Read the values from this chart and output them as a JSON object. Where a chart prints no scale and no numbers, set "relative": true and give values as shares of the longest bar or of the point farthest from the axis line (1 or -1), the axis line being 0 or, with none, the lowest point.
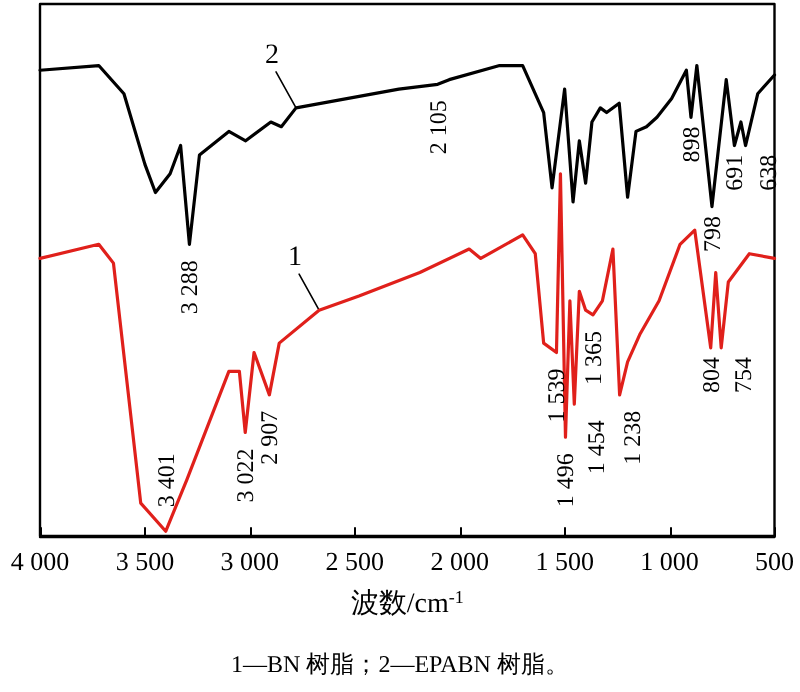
{
  "chart_data": {
    "type": "line",
    "relative": true,
    "xlabel": "波数/cm$^{-1}$",
    "xlim": [
      4000,
      500
    ],
    "xticks": [
      {
        "value": 4000,
        "label": "4 000"
      },
      {
        "value": 3500,
        "label": "3 500"
      },
      {
        "value": 3000,
        "label": "3 000"
      },
      {
        "value": 2500,
        "label": "2 500"
      },
      {
        "value": 2000,
        "label": "2 000"
      },
      {
        "value": 1500,
        "label": "1 500"
      },
      {
        "value": 1000,
        "label": "1 000"
      },
      {
        "value": 500,
        "label": "500"
      }
    ],
    "tick_labels": "x",
    "grid": false,
    "legend": false,
    "marker": "none",
    "line_style": "solid",
    "series": [
      {
        "name": "2",
        "color": "#000000",
        "x": [
          4000,
          3720,
          3600,
          3500,
          3450,
          3380,
          3330,
          3288,
          3240,
          3100,
          3020,
          2900,
          2850,
          2780,
          2290,
          2105,
          2050,
          1810,
          1700,
          1600,
          1560,
          1500,
          1460,
          1430,
          1400,
          1370,
          1330,
          1300,
          1240,
          1200,
          1160,
          1110,
          1060,
          990,
          920,
          898,
          870,
          798,
          730,
          691,
          660,
          638,
          580,
          500
        ],
        "values": [
          0.99,
          1.0,
          0.94,
          0.79,
          0.73,
          0.77,
          0.83,
          0.62,
          0.81,
          0.86,
          0.84,
          0.88,
          0.87,
          0.91,
          0.95,
          0.96,
          0.97,
          1.0,
          1.0,
          0.9,
          0.74,
          0.95,
          0.71,
          0.84,
          0.75,
          0.88,
          0.91,
          0.9,
          0.92,
          0.72,
          0.86,
          0.87,
          0.89,
          0.93,
          0.99,
          0.89,
          1.0,
          0.7,
          0.97,
          0.83,
          0.88,
          0.83,
          0.94,
          0.98
        ]
      },
      {
        "name": "1",
        "color": "#e0201b",
        "x": [
          4000,
          3720,
          3650,
          3520,
          3401,
          3300,
          3100,
          3050,
          3022,
          2980,
          2907,
          2860,
          2670,
          2480,
          2190,
          1955,
          1900,
          1700,
          1640,
          1600,
          1539,
          1520,
          1496,
          1475,
          1454,
          1430,
          1400,
          1365,
          1320,
          1270,
          1238,
          1200,
          1140,
          1050,
          950,
          880,
          804,
          780,
          754,
          720,
          620,
          500
        ],
        "values": [
          0.59,
          0.62,
          0.58,
          0.07,
          0.01,
          0.12,
          0.35,
          0.35,
          0.22,
          0.39,
          0.3,
          0.41,
          0.48,
          0.51,
          0.56,
          0.61,
          0.59,
          0.64,
          0.6,
          0.41,
          0.39,
          0.77,
          0.21,
          0.5,
          0.28,
          0.52,
          0.48,
          0.47,
          0.5,
          0.61,
          0.3,
          0.37,
          0.43,
          0.5,
          0.62,
          0.65,
          0.4,
          0.56,
          0.4,
          0.54,
          0.6,
          0.59
        ]
      }
    ],
    "annotations": [
      {
        "text": "3 288",
        "x": 3288,
        "y": 0.62
      },
      {
        "text": "2 105",
        "x": 2105,
        "y": 0.96
      },
      {
        "text": "898",
        "x": 898,
        "y": 0.89
      },
      {
        "text": "798",
        "x": 798,
        "y": 0.7
      },
      {
        "text": "691",
        "x": 691,
        "y": 0.83
      },
      {
        "text": "638",
        "x": 638,
        "y": 0.83
      },
      {
        "text": "3 401",
        "x": 3401,
        "y": 0.01
      },
      {
        "text": "3 022",
        "x": 3022,
        "y": 0.22
      },
      {
        "text": "2 907",
        "x": 2907,
        "y": 0.3
      },
      {
        "text": "1 539",
        "x": 1539,
        "y": 0.39
      },
      {
        "text": "1 496",
        "x": 1496,
        "y": 0.21
      },
      {
        "text": "1 454",
        "x": 1454,
        "y": 0.28
      },
      {
        "text": "1 365",
        "x": 1365,
        "y": 0.47
      },
      {
        "text": "1 238",
        "x": 1238,
        "y": 0.3
      },
      {
        "text": "804",
        "x": 804,
        "y": 0.4
      },
      {
        "text": "754",
        "x": 754,
        "y": 0.4
      },
      "1—BN 树脂；2—EPABN 树脂。"
    ]
  }
}
